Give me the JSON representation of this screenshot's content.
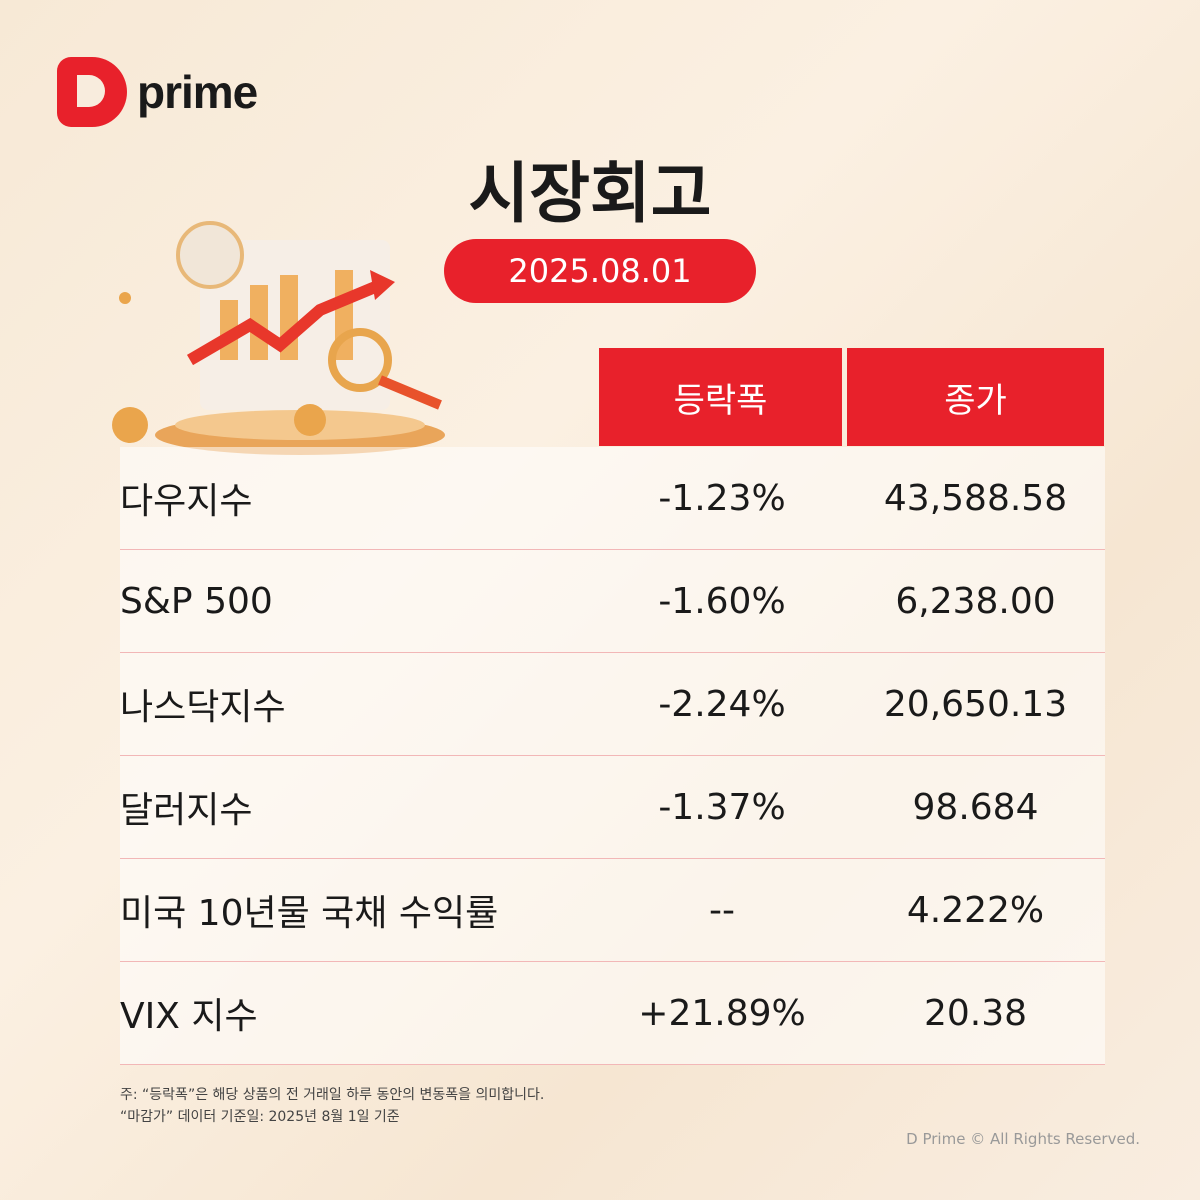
{
  "brand": {
    "name": "prime",
    "color": "#e8212b"
  },
  "title": "시장회고",
  "date": "2025.08.01",
  "table": {
    "headers": [
      "등락폭",
      "종가"
    ],
    "rows": [
      {
        "name": "다우지수",
        "change": "-1.23%",
        "close": "43,588.58"
      },
      {
        "name": "S&P 500",
        "change": "-1.60%",
        "close": "6,238.00"
      },
      {
        "name": "나스닥지수",
        "change": "-2.24%",
        "close": "20,650.13"
      },
      {
        "name": "달러지수",
        "change": "-1.37%",
        "close": "98.684"
      },
      {
        "name": "미국 10년물 국채 수익률",
        "change": "--",
        "close": "4.222%"
      },
      {
        "name": "VIX 지수",
        "change": "+21.89%",
        "close": "20.38"
      }
    ]
  },
  "notes": [
    "주: “등락폭”은 해당 상품의 전 거래일 하루 동안의 변동폭을 의미합니다.",
    "“마감가” 데이터 기준일: 2025년 8월 1일 기준"
  ],
  "copyright": "D Prime © All Rights Reserved."
}
